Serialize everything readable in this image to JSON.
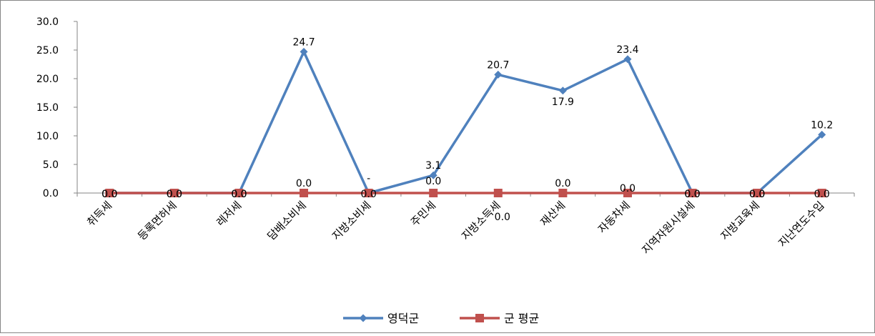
{
  "chart_data": {
    "type": "line",
    "categories": [
      "취득세",
      "등록면허세",
      "레저세",
      "담배소비세",
      "지방소비세",
      "주민세",
      "지방소득세",
      "재산세",
      "자동차세",
      "지역자원시설세",
      "지방교육세",
      "지난연도수입"
    ],
    "series": [
      {
        "name": "영덕군",
        "color": "#4f81bd",
        "marker": "diamond",
        "values": [
          0.0,
          0.0,
          0.0,
          24.7,
          0.0,
          3.1,
          20.7,
          17.9,
          23.4,
          0.0,
          0.0,
          10.2
        ],
        "labels": [
          "0.0",
          "0.0",
          "0.0",
          "24.7",
          "-",
          "3.1",
          "20.7",
          "17.9",
          "23.4",
          "0.0",
          "0.0",
          "10.2"
        ]
      },
      {
        "name": "군 평균",
        "color": "#c0504d",
        "marker": "square",
        "values": [
          0.0,
          0.0,
          0.0,
          0.0,
          0.0,
          0.0,
          0.0,
          0.0,
          0.0,
          0.0,
          0.0,
          0.0
        ],
        "labels": [
          "0.0",
          "0.0",
          "0.0",
          "0.0",
          "0.0",
          "0.0",
          "0.0",
          "0.0",
          "0.0",
          "0.0",
          "0.0",
          "0.0"
        ]
      }
    ],
    "y_ticks": [
      "0.0",
      "5.0",
      "10.0",
      "15.0",
      "20.0",
      "25.0",
      "30.0"
    ],
    "ylim": [
      0,
      30
    ],
    "grid": false,
    "legend_position": "bottom-center",
    "title": "",
    "xlabel": "",
    "ylabel": ""
  }
}
